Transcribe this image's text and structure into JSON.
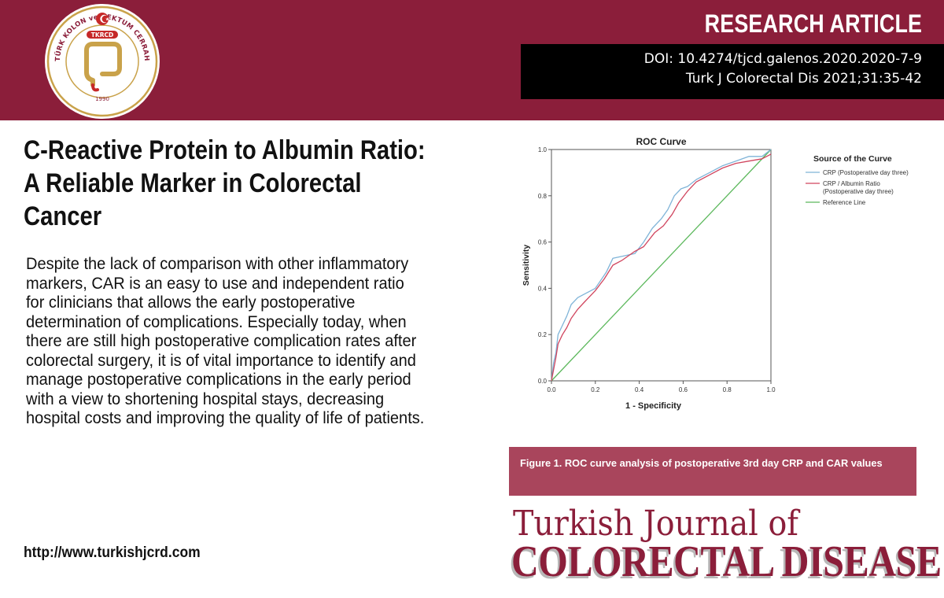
{
  "header": {
    "article_type": "RESEARCH ARTICLE",
    "doi": "DOI: 10.4274/tjcd.galenos.2020.2020-7-9",
    "citation": "Turk J Colorectal Dis 2021;31:35-42",
    "logo": {
      "acronym": "TKRCD",
      "ring_text": "TÜRK KOLON ve REKTUM CERRAHİSİ DERNEĞİ",
      "year": "1990"
    }
  },
  "title": "C-Reactive Protein to Albumin Ratio: A Reliable Marker in Colorectal Cancer",
  "body": "Despite the lack of comparison with other inflammatory markers, CAR is an easy to use and independent ratio for clinicians that allows the early postoperative determination of complications. Especially today, when there are still high postoperative complication rates after colorectal surgery, it is of vital importance to identify and manage postoperative complications in the early period with a view to shortening hospital stays, decreasing hospital costs and improving the quality of life of patients.",
  "url": "http://www.turkishjcrd.com",
  "figure_caption": "Figure 1. ROC curve analysis of postoperative 3rd day CRP and CAR values",
  "journal": {
    "line1": "Turkish Journal of",
    "line2": "COLORECTAL DISEASE"
  },
  "colors": {
    "brand": "#8b1e3a",
    "caption_bg": "#a9455c",
    "crp": "#7fb4d8",
    "car": "#d0455e",
    "reference": "#5cb85c"
  },
  "chart_data": {
    "type": "line",
    "title": "ROC Curve",
    "xlabel": "1 - Specificity",
    "ylabel": "Sensitivity",
    "xlim": [
      0,
      1
    ],
    "ylim": [
      0,
      1
    ],
    "x_ticks": [
      "0.0",
      "0.2",
      "0.4",
      "0.6",
      "0.8",
      "1.0"
    ],
    "y_ticks": [
      "0.0",
      "0.2",
      "0.4",
      "0.6",
      "0.8",
      "1.0"
    ],
    "legend_title": "Source of the Curve",
    "legend_position": "right",
    "series": [
      {
        "name": "CRP (Postoperative day three)",
        "color": "#7fb4d8",
        "points": [
          [
            0,
            0
          ],
          [
            0.01,
            0.08
          ],
          [
            0.02,
            0.12
          ],
          [
            0.03,
            0.2
          ],
          [
            0.05,
            0.24
          ],
          [
            0.07,
            0.28
          ],
          [
            0.09,
            0.33
          ],
          [
            0.12,
            0.36
          ],
          [
            0.16,
            0.38
          ],
          [
            0.2,
            0.4
          ],
          [
            0.25,
            0.47
          ],
          [
            0.28,
            0.53
          ],
          [
            0.33,
            0.54
          ],
          [
            0.38,
            0.55
          ],
          [
            0.42,
            0.6
          ],
          [
            0.46,
            0.66
          ],
          [
            0.5,
            0.7
          ],
          [
            0.53,
            0.74
          ],
          [
            0.56,
            0.8
          ],
          [
            0.59,
            0.83
          ],
          [
            0.62,
            0.84
          ],
          [
            0.66,
            0.87
          ],
          [
            0.72,
            0.9
          ],
          [
            0.78,
            0.93
          ],
          [
            0.84,
            0.95
          ],
          [
            0.9,
            0.97
          ],
          [
            0.96,
            0.97
          ],
          [
            1,
            1
          ]
        ]
      },
      {
        "name": "CRP / Albumin Ratio\n(Postoperative day three)",
        "color": "#d0455e",
        "points": [
          [
            0,
            0
          ],
          [
            0.01,
            0.05
          ],
          [
            0.02,
            0.1
          ],
          [
            0.03,
            0.16
          ],
          [
            0.05,
            0.2
          ],
          [
            0.07,
            0.23
          ],
          [
            0.09,
            0.27
          ],
          [
            0.12,
            0.31
          ],
          [
            0.15,
            0.34
          ],
          [
            0.2,
            0.39
          ],
          [
            0.24,
            0.44
          ],
          [
            0.28,
            0.5
          ],
          [
            0.32,
            0.52
          ],
          [
            0.38,
            0.56
          ],
          [
            0.42,
            0.58
          ],
          [
            0.47,
            0.64
          ],
          [
            0.51,
            0.67
          ],
          [
            0.55,
            0.72
          ],
          [
            0.58,
            0.77
          ],
          [
            0.62,
            0.82
          ],
          [
            0.66,
            0.86
          ],
          [
            0.72,
            0.89
          ],
          [
            0.78,
            0.92
          ],
          [
            0.84,
            0.94
          ],
          [
            0.9,
            0.95
          ],
          [
            0.96,
            0.96
          ],
          [
            1,
            0.98
          ]
        ]
      },
      {
        "name": "Reference Line",
        "color": "#5cb85c",
        "points": [
          [
            0,
            0
          ],
          [
            1,
            1
          ]
        ]
      }
    ]
  }
}
